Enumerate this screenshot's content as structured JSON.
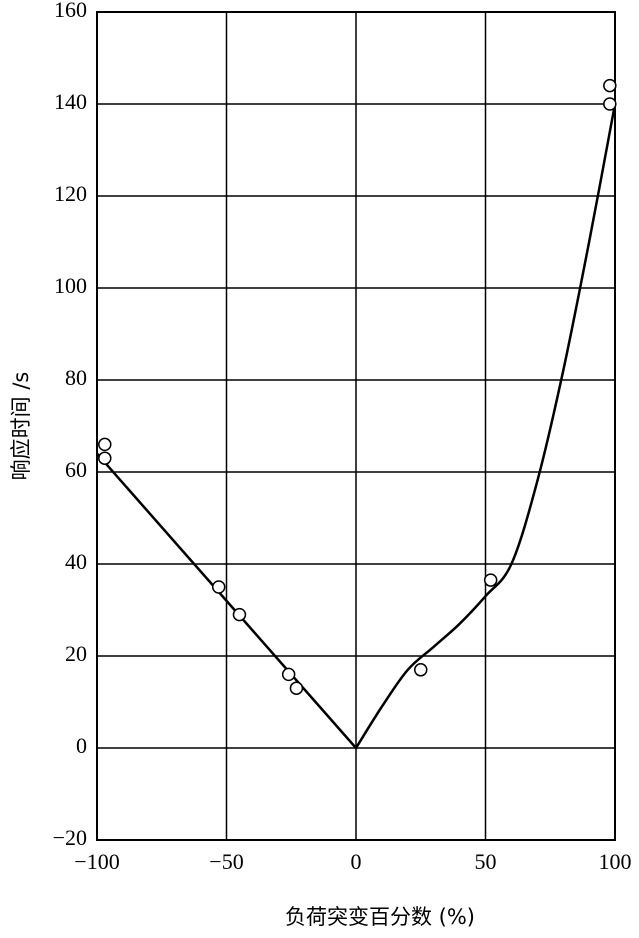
{
  "chart_data": {
    "type": "scatter",
    "x_label": "负荷突变百分数 (%)",
    "y_label": "响应时间 /s",
    "xlim": [
      -100,
      100
    ],
    "ylim": [
      -20,
      160
    ],
    "xticks": [
      {
        "value": -100,
        "label": "−100"
      },
      {
        "value": -50,
        "label": "−50"
      },
      0,
      50,
      100
    ],
    "yticks": [
      {
        "value": -20,
        "label": "−20"
      },
      0,
      20,
      40,
      60,
      80,
      100,
      120,
      140,
      160
    ],
    "grid": true,
    "color": "#000000",
    "points": {
      "x": [
        -97,
        -97,
        -53,
        -45,
        -26,
        -23,
        25,
        52,
        98,
        98
      ],
      "y": [
        66,
        63,
        35,
        29,
        16,
        13,
        17,
        36.5,
        144,
        140
      ]
    },
    "fit": {
      "x": [
        -100,
        0,
        10,
        20,
        30,
        40,
        50,
        60,
        70,
        80,
        90,
        100
      ],
      "y": [
        64,
        0,
        9,
        17,
        22,
        27,
        33,
        40,
        58,
        82,
        110,
        140
      ]
    }
  }
}
